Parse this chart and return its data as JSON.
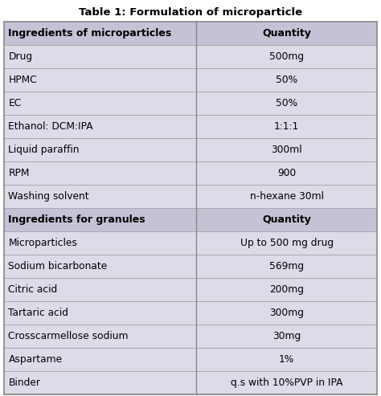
{
  "title": "Table 1: Formulation of microparticle",
  "header_bg": "#c5c2d6",
  "data_bg": "#dddbe8",
  "table_border": "#888888",
  "line_color": "#aaaaaa",
  "col_split": 0.515,
  "title_fontsize": 9.5,
  "header_fontsize": 9,
  "cell_fontsize": 8.8,
  "rows": [
    [
      "Ingredients of microparticles",
      "Quantity",
      true
    ],
    [
      "Drug",
      "500mg",
      false
    ],
    [
      "HPMC",
      "50%",
      false
    ],
    [
      "EC",
      "50%",
      false
    ],
    [
      "Ethanol: DCM:IPA",
      "1:1:1",
      false
    ],
    [
      "Liquid paraffin",
      "300ml",
      false
    ],
    [
      "RPM",
      "900",
      false
    ],
    [
      "Washing solvent",
      "n-hexane 30ml",
      false
    ],
    [
      "Ingredients for granules",
      "Quantity",
      true
    ],
    [
      "Microparticles",
      "Up to 500 mg drug",
      false
    ],
    [
      "Sodium bicarbonate",
      "569mg",
      false
    ],
    [
      "Citric acid",
      "200mg",
      false
    ],
    [
      "Tartaric acid",
      "300mg",
      false
    ],
    [
      "Crosscarmellose sodium",
      "30mg",
      false
    ],
    [
      "Aspartame",
      "1%",
      false
    ],
    [
      "Binder",
      "q.s with 10%PVP in IPA",
      false
    ]
  ]
}
